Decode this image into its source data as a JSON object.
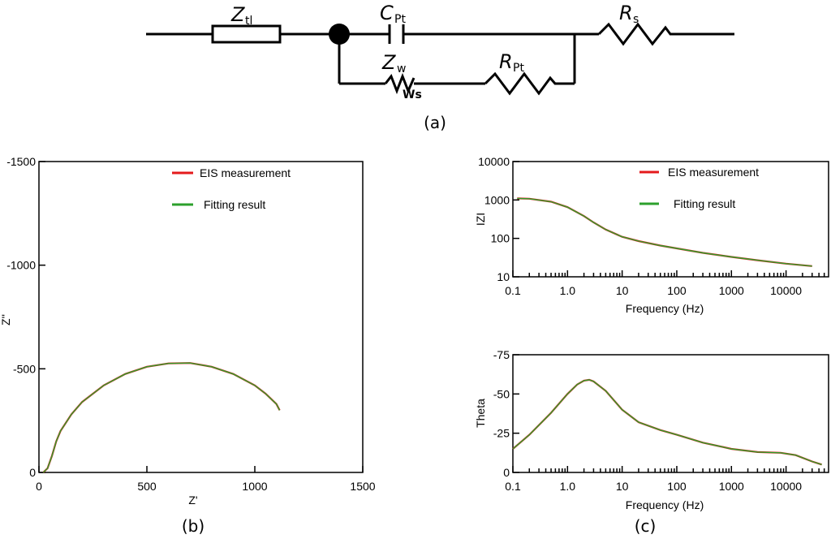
{
  "circuit": {
    "caption": "(a)",
    "components": [
      {
        "name": "Z",
        "sub": "tl"
      },
      {
        "name": "C",
        "sub": "Pt"
      },
      {
        "name": "R",
        "sub": "s"
      },
      {
        "name": "Z",
        "sub": "w"
      },
      {
        "name": "R",
        "sub": "Pt"
      }
    ],
    "warburg_label": "Ws"
  },
  "chart_data": [
    {
      "id": "nyquist",
      "type": "line",
      "caption": "(b)",
      "xlabel": "Z'",
      "ylabel": "Z''",
      "xlim": [
        0,
        1500
      ],
      "ylim": [
        0,
        -1500
      ],
      "xticks": [
        0,
        500,
        1000,
        1500
      ],
      "xtick_labels": [
        "0",
        "500",
        "1000",
        "1500"
      ],
      "yticks": [
        0,
        -500,
        -1000,
        -1500
      ],
      "ytick_labels": [
        "0",
        "-500",
        "-1000",
        "-1500"
      ],
      "legend": {
        "position": "top-right",
        "entries": [
          "EIS measurement",
          "Fitting result"
        ]
      },
      "colors": {
        "measurement": "#e41a1c",
        "fit": "#2ca02c",
        "axis": "#000000"
      },
      "series": [
        {
          "name": "EIS measurement",
          "x": [
            20,
            40,
            60,
            80,
            100,
            150,
            200,
            300,
            400,
            500,
            600,
            700,
            800,
            900,
            1000,
            1050,
            1100,
            1115
          ],
          "y": [
            0,
            -20,
            -80,
            -150,
            -200,
            -280,
            -340,
            -420,
            -475,
            -510,
            -526,
            -528,
            -510,
            -475,
            -420,
            -380,
            -330,
            -300
          ]
        },
        {
          "name": "Fitting result",
          "x": [
            20,
            40,
            60,
            80,
            100,
            150,
            200,
            300,
            400,
            500,
            600,
            700,
            800,
            900,
            1000,
            1050,
            1100,
            1115
          ],
          "y": [
            0,
            -20,
            -80,
            -150,
            -200,
            -280,
            -340,
            -420,
            -475,
            -510,
            -526,
            -528,
            -510,
            -475,
            -420,
            -380,
            -330,
            -300
          ]
        }
      ]
    },
    {
      "id": "bode-magnitude",
      "type": "line",
      "caption": "(c)",
      "xlabel": "Frequency (Hz)",
      "ylabel": "IZI",
      "xscale": "log",
      "yscale": "log",
      "xlim": [
        0.1,
        60000
      ],
      "ylim": [
        10,
        10000
      ],
      "xticks": [
        0.1,
        1,
        10,
        100,
        1000,
        10000
      ],
      "xtick_labels": [
        "0.1",
        "1.0",
        "10",
        "100",
        "1000",
        "10000"
      ],
      "yticks": [
        10,
        100,
        1000,
        10000
      ],
      "ytick_labels": [
        "10",
        "100",
        "1000",
        "10000"
      ],
      "legend": {
        "position": "top-right",
        "entries": [
          "EIS measurement",
          "Fitting result"
        ]
      },
      "series": [
        {
          "name": "EIS measurement",
          "x": [
            0.12,
            0.2,
            0.5,
            1,
            2,
            3,
            5,
            10,
            20,
            50,
            100,
            300,
            1000,
            3000,
            10000,
            30000
          ],
          "y": [
            1100,
            1080,
            900,
            650,
            380,
            260,
            170,
            110,
            85,
            65,
            55,
            42,
            33,
            27,
            22,
            19
          ]
        },
        {
          "name": "Fitting result",
          "x": [
            0.12,
            0.2,
            0.5,
            1,
            2,
            3,
            5,
            10,
            20,
            50,
            100,
            300,
            1000,
            3000,
            10000,
            30000
          ],
          "y": [
            1100,
            1080,
            900,
            650,
            380,
            260,
            170,
            110,
            85,
            65,
            55,
            42,
            33,
            27,
            22,
            19
          ]
        }
      ]
    },
    {
      "id": "bode-phase",
      "type": "line",
      "xlabel": "Frequency (Hz)",
      "ylabel": "Theta",
      "xscale": "log",
      "xlim": [
        0.1,
        60000
      ],
      "ylim": [
        0,
        -75
      ],
      "xticks": [
        0.1,
        1,
        10,
        100,
        1000,
        10000
      ],
      "xtick_labels": [
        "0.1",
        "1.0",
        "10",
        "100",
        "1000",
        "10000"
      ],
      "yticks": [
        0,
        -25,
        -50,
        -75
      ],
      "ytick_labels": [
        "0",
        "-25",
        "-50",
        "-75"
      ],
      "series": [
        {
          "name": "EIS measurement",
          "x": [
            0.1,
            0.2,
            0.5,
            1,
            1.5,
            2,
            2.5,
            3,
            5,
            10,
            20,
            50,
            100,
            300,
            1000,
            3000,
            8000,
            15000,
            30000,
            45000
          ],
          "y": [
            -15,
            -24,
            -38,
            -50,
            -56,
            -58.5,
            -59,
            -58,
            -52,
            -40,
            -32,
            -27,
            -24,
            -19,
            -15,
            -13,
            -12.5,
            -11,
            -7,
            -5
          ]
        },
        {
          "name": "Fitting result",
          "x": [
            0.1,
            0.2,
            0.5,
            1,
            1.5,
            2,
            2.5,
            3,
            5,
            10,
            20,
            50,
            100,
            300,
            1000,
            3000,
            8000,
            15000,
            30000,
            45000
          ],
          "y": [
            -15,
            -24,
            -38,
            -50,
            -56,
            -58.5,
            -59,
            -58,
            -52,
            -40,
            -32,
            -27,
            -24,
            -19,
            -15,
            -13,
            -12.5,
            -11,
            -7,
            -5
          ]
        }
      ]
    }
  ]
}
